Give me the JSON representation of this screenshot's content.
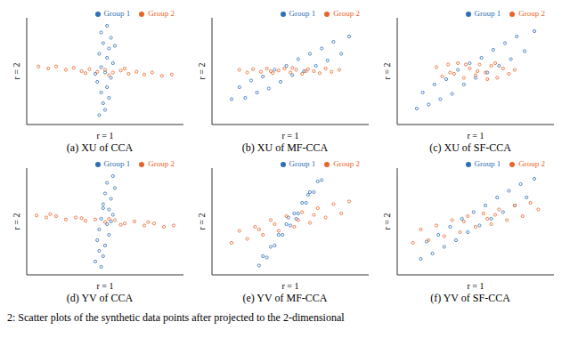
{
  "chart_data": [
    {
      "type": "scatter",
      "title": "(a) XU of CCA",
      "x_label": "r = 1",
      "y_label": "r = 2",
      "xlim": [
        -4,
        4
      ],
      "ylim": [
        -4,
        4
      ],
      "tick_labels": false,
      "legend": "top-right",
      "series": [
        {
          "name": "Group 1",
          "color": "#2f6fb5",
          "marker": "circle",
          "x": [
            0.1,
            -0.2,
            0.3,
            -0.1,
            0.2,
            -0.3,
            0.1,
            0.4,
            -0.2,
            0.0,
            0.3,
            -0.4,
            0.1,
            -0.2,
            0.2,
            -0.1,
            0.0,
            -0.3,
            0.5,
            -0.5
          ],
          "y": [
            3.4,
            2.9,
            2.5,
            2.1,
            1.7,
            1.3,
            1.0,
            0.6,
            0.3,
            -0.1,
            -0.5,
            -0.8,
            -1.2,
            -1.6,
            -2.0,
            -2.4,
            -2.9,
            -3.3,
            1.9,
            -0.2
          ]
        },
        {
          "name": "Group 2",
          "color": "#e8652a",
          "marker": "circle",
          "x": [
            -3.4,
            -2.9,
            -2.5,
            -2.0,
            -1.6,
            -1.2,
            -0.8,
            -0.4,
            0.0,
            0.4,
            0.8,
            1.2,
            1.6,
            2.0,
            2.4,
            2.9,
            3.4,
            -1.0,
            1.0,
            0.2
          ],
          "y": [
            0.35,
            0.2,
            0.35,
            0.1,
            0.25,
            0.0,
            0.15,
            -0.05,
            0.1,
            -0.1,
            0.05,
            -0.2,
            -0.05,
            -0.25,
            -0.1,
            -0.35,
            -0.25,
            -0.15,
            0.2,
            -0.3
          ]
        }
      ]
    },
    {
      "type": "scatter",
      "title": "(b) XU of MF-CCA",
      "x_label": "r = 1",
      "y_label": "r = 2",
      "xlim": [
        -4,
        4
      ],
      "ylim": [
        -4,
        4
      ],
      "tick_labels": false,
      "legend": "top-right",
      "series": [
        {
          "name": "Group 1",
          "color": "#2f6fb5",
          "marker": "circle",
          "x": [
            -3.0,
            -2.6,
            -2.3,
            -2.0,
            -1.7,
            -1.4,
            -1.1,
            -0.8,
            -0.5,
            -0.2,
            0.1,
            0.4,
            0.7,
            1.0,
            1.3,
            1.6,
            1.9,
            2.2,
            2.6,
            3.0
          ],
          "y": [
            -2.1,
            -1.2,
            -2.0,
            -0.7,
            -1.6,
            -0.4,
            -1.3,
            0.1,
            -0.8,
            0.4,
            -0.3,
            0.9,
            0.0,
            1.3,
            0.4,
            1.7,
            0.8,
            2.2,
            1.3,
            2.6
          ]
        },
        {
          "name": "Group 2",
          "color": "#e8652a",
          "marker": "circle",
          "x": [
            -2.6,
            -2.2,
            -1.9,
            -1.5,
            -1.2,
            -0.9,
            -0.6,
            -0.3,
            0.0,
            0.3,
            0.6,
            0.9,
            1.2,
            1.5,
            1.8,
            2.1,
            2.5,
            -1.0,
            0.8,
            0.1
          ],
          "y": [
            0.1,
            -0.1,
            0.15,
            -0.05,
            0.2,
            -0.15,
            0.05,
            0.2,
            -0.1,
            0.1,
            -0.2,
            0.15,
            0.0,
            -0.15,
            0.2,
            -0.05,
            0.1,
            0.0,
            0.0,
            0.25
          ]
        }
      ]
    },
    {
      "type": "scatter",
      "title": "(c) XU of SF-CCA",
      "x_label": "r = 1",
      "y_label": "r = 2",
      "xlim": [
        -4,
        4
      ],
      "ylim": [
        -4,
        4
      ],
      "tick_labels": false,
      "legend": "top-right",
      "series": [
        {
          "name": "Group 1",
          "color": "#2f6fb5",
          "marker": "circle",
          "x": [
            -3.0,
            -2.7,
            -2.4,
            -2.1,
            -1.8,
            -1.5,
            -1.2,
            -0.9,
            -0.6,
            -0.3,
            0.0,
            0.3,
            0.6,
            0.9,
            1.2,
            1.5,
            1.8,
            2.1,
            2.5,
            3.0
          ],
          "y": [
            -2.8,
            -1.6,
            -2.5,
            -1.0,
            -2.1,
            -0.6,
            -1.7,
            0.1,
            -1.0,
            0.6,
            -0.5,
            1.0,
            -0.1,
            1.6,
            0.4,
            2.1,
            0.9,
            2.6,
            1.5,
            3.0
          ]
        },
        {
          "name": "Group 2",
          "color": "#e8652a",
          "marker": "circle",
          "x": [
            -2.0,
            -1.7,
            -1.4,
            -1.1,
            -0.9,
            -0.6,
            -0.3,
            0.0,
            0.2,
            0.5,
            0.8,
            1.1,
            1.4,
            1.7,
            2.0,
            -0.5,
            0.6,
            -1.3,
            1.0,
            0.1
          ],
          "y": [
            0.3,
            -0.4,
            0.5,
            -0.2,
            0.6,
            -0.5,
            0.2,
            -0.3,
            0.5,
            -0.1,
            0.4,
            -0.5,
            0.2,
            -0.2,
            0.1,
            0.5,
            -0.6,
            -0.1,
            0.6,
            0.0
          ]
        }
      ]
    },
    {
      "type": "scatter",
      "title": "(d) YV of CCA",
      "x_label": "r = 1",
      "y_label": "r = 2",
      "xlim": [
        -4,
        4
      ],
      "ylim": [
        -4,
        4
      ],
      "tick_labels": false,
      "legend": "top-right",
      "series": [
        {
          "name": "Group 1",
          "color": "#2f6fb5",
          "marker": "circle",
          "x": [
            0.4,
            0.1,
            0.5,
            0.0,
            0.3,
            -0.1,
            0.2,
            0.4,
            -0.2,
            0.1,
            -0.3,
            0.2,
            -0.4,
            0.0,
            -0.3,
            -0.1,
            -0.5,
            -0.2,
            0.3,
            -0.1
          ],
          "y": [
            3.4,
            2.9,
            2.5,
            2.1,
            1.7,
            1.3,
            0.9,
            0.5,
            0.2,
            -0.2,
            -0.6,
            -1.0,
            -1.4,
            -1.8,
            -2.2,
            -2.6,
            -3.0,
            -3.4,
            0.0,
            1.0
          ]
        },
        {
          "name": "Group 2",
          "color": "#e8652a",
          "marker": "circle",
          "x": [
            -3.5,
            -3.0,
            -2.5,
            -2.0,
            -1.5,
            -1.0,
            -0.5,
            0.0,
            0.5,
            1.0,
            1.5,
            2.0,
            2.5,
            3.0,
            3.5,
            -1.2,
            0.8,
            2.2,
            -2.8,
            0.2
          ],
          "y": [
            0.45,
            0.3,
            0.4,
            0.15,
            0.3,
            0.05,
            0.15,
            -0.05,
            0.1,
            -0.15,
            0.0,
            -0.3,
            -0.15,
            -0.4,
            -0.3,
            0.25,
            -0.25,
            -0.05,
            0.55,
            0.2
          ]
        }
      ]
    },
    {
      "type": "scatter",
      "title": "(e) YV of MF-CCA",
      "x_label": "r = 1",
      "y_label": "r = 2",
      "xlim": [
        -4,
        4
      ],
      "ylim": [
        -4,
        4
      ],
      "tick_labels": false,
      "legend": "top-right",
      "series": [
        {
          "name": "Group 1",
          "color": "#2f6fb5",
          "marker": "circle",
          "x": [
            -1.6,
            -1.4,
            -1.2,
            -1.0,
            -0.8,
            -0.6,
            -0.4,
            -0.2,
            0.0,
            0.2,
            0.4,
            0.6,
            0.8,
            1.0,
            1.2,
            1.4,
            1.6,
            -0.1,
            0.3,
            0.9
          ],
          "y": [
            -3.3,
            -2.6,
            -2.7,
            -1.9,
            -1.8,
            -1.0,
            -1.0,
            -0.2,
            -0.3,
            0.6,
            0.6,
            1.4,
            1.4,
            2.2,
            2.2,
            3.0,
            3.1,
            0.3,
            0.2,
            2.0
          ]
        },
        {
          "name": "Group 2",
          "color": "#e8652a",
          "marker": "circle",
          "x": [
            -3.0,
            -2.6,
            -2.2,
            -1.8,
            -1.4,
            -1.0,
            -0.6,
            -0.2,
            0.2,
            0.6,
            1.0,
            1.4,
            1.8,
            2.2,
            2.6,
            3.0,
            -0.8,
            0.4,
            1.2,
            -1.6
          ],
          "y": [
            -1.6,
            -0.7,
            -1.3,
            -0.4,
            -1.0,
            0.1,
            -0.7,
            0.4,
            -0.4,
            0.7,
            -0.1,
            1.0,
            0.3,
            1.3,
            0.6,
            1.5,
            -0.2,
            0.1,
            0.5,
            -0.6
          ]
        }
      ]
    },
    {
      "type": "scatter",
      "title": "(f) YV of SF-CCA",
      "x_label": "r = 1",
      "y_label": "r = 2",
      "xlim": [
        -4,
        4
      ],
      "ylim": [
        -4,
        4
      ],
      "tick_labels": false,
      "legend": "top-right",
      "series": [
        {
          "name": "Group 1",
          "color": "#2f6fb5",
          "marker": "circle",
          "x": [
            -2.8,
            -2.5,
            -2.2,
            -1.9,
            -1.6,
            -1.3,
            -1.0,
            -0.7,
            -0.4,
            -0.1,
            0.2,
            0.5,
            0.8,
            1.1,
            1.4,
            1.7,
            2.0,
            2.3,
            2.6,
            3.0
          ],
          "y": [
            -2.8,
            -1.5,
            -2.4,
            -1.0,
            -1.9,
            -0.4,
            -1.4,
            0.2,
            -0.8,
            0.7,
            -0.3,
            1.2,
            0.2,
            1.8,
            0.7,
            2.3,
            1.2,
            2.8,
            1.8,
            3.2
          ]
        },
        {
          "name": "Group 2",
          "color": "#e8652a",
          "marker": "circle",
          "x": [
            -3.2,
            -2.8,
            -2.4,
            -2.0,
            -1.6,
            -1.2,
            -0.8,
            -0.4,
            0.0,
            0.4,
            0.8,
            1.2,
            1.6,
            2.0,
            2.4,
            2.8,
            3.2,
            -0.6,
            0.6,
            1.0
          ],
          "y": [
            -1.6,
            -0.6,
            -1.4,
            -0.3,
            -1.1,
            0.1,
            -0.8,
            0.4,
            -0.4,
            0.6,
            -0.2,
            0.9,
            0.1,
            1.2,
            0.4,
            1.4,
            0.9,
            0.0,
            0.2,
            0.5
          ]
        }
      ]
    }
  ],
  "figure_caption": "2: Scatter plots of the synthetic data points after projected to the 2-dimensional"
}
